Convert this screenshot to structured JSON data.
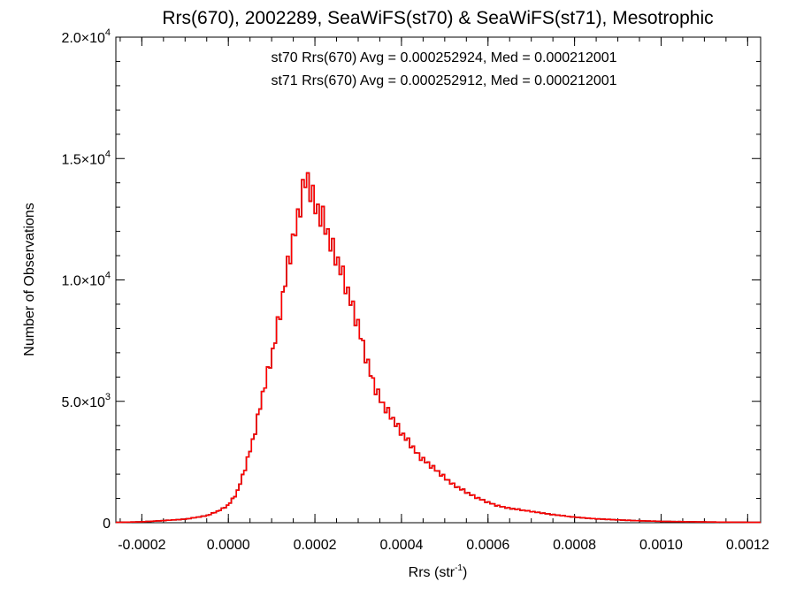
{
  "chart_data": {
    "type": "histogram-step",
    "title": "Rrs(670), 2002289, SeaWiFS(st70) & SeaWiFS(st71), Mesotrophic",
    "xlabel": "Rrs (str",
    "xlabel_sup": "-1",
    "xlabel_close": ")",
    "ylabel": "Number of Observations",
    "xlim": [
      -0.00026,
      0.00123
    ],
    "ylim": [
      0,
      20000
    ],
    "x_ticks": [
      {
        "value": -0.0002,
        "label": "-0.0002"
      },
      {
        "value": 0.0,
        "label": "0.0000"
      },
      {
        "value": 0.0002,
        "label": "0.0002"
      },
      {
        "value": 0.0004,
        "label": "0.0004"
      },
      {
        "value": 0.0006,
        "label": "0.0006"
      },
      {
        "value": 0.0008,
        "label": "0.0008"
      },
      {
        "value": 0.001,
        "label": "0.0010"
      },
      {
        "value": 0.0012,
        "label": "0.0012"
      }
    ],
    "y_ticks": [
      {
        "value": 0,
        "mant": "0",
        "exp": ""
      },
      {
        "value": 5000,
        "mant": "5.0×10",
        "exp": "3"
      },
      {
        "value": 10000,
        "mant": "1.0×10",
        "exp": "4"
      },
      {
        "value": 15000,
        "mant": "1.5×10",
        "exp": "4"
      },
      {
        "value": 20000,
        "mant": "2.0×10",
        "exp": "4"
      }
    ],
    "annotations": [
      {
        "text": "st70 Rrs(670) Avg = 0.000252924, Med = 0.000212001",
        "color": "#000000"
      },
      {
        "text": "st71 Rrs(670) Avg = 0.000252912, Med = 0.000212001",
        "color": "#ff0000"
      }
    ],
    "series": [
      {
        "name": "st70",
        "color": "#000000"
      },
      {
        "name": "st71",
        "color": "#ff0000"
      }
    ],
    "bin_width": 5.8e-06,
    "shape_points": [
      [
        -0.00026,
        0.0009
      ],
      [
        -0.0002,
        0.0025
      ],
      [
        -0.00015,
        0.006
      ],
      [
        -0.0001,
        0.01
      ],
      [
        -5e-05,
        0.02
      ],
      [
        -2e-05,
        0.035
      ],
      [
        0.0,
        0.05
      ],
      [
        2e-05,
        0.085
      ],
      [
        4e-05,
        0.16
      ],
      [
        6e-05,
        0.25
      ],
      [
        8e-05,
        0.37
      ],
      [
        0.0001,
        0.47
      ],
      [
        0.00012,
        0.6
      ],
      [
        0.00014,
        0.75
      ],
      [
        0.00016,
        0.86
      ],
      [
        0.00017,
        0.935
      ],
      [
        0.00018,
        0.98
      ],
      [
        0.00019,
        0.95
      ],
      [
        0.0002,
        0.9
      ],
      [
        0.00022,
        0.86
      ],
      [
        0.00024,
        0.78
      ],
      [
        0.00026,
        0.72
      ],
      [
        0.00028,
        0.64
      ],
      [
        0.0003,
        0.56
      ],
      [
        0.00032,
        0.46
      ],
      [
        0.00034,
        0.38
      ],
      [
        0.00036,
        0.33
      ],
      [
        0.00038,
        0.295
      ],
      [
        0.0004,
        0.255
      ],
      [
        0.00042,
        0.225
      ],
      [
        0.00044,
        0.19
      ],
      [
        0.00046,
        0.17
      ],
      [
        0.00048,
        0.15
      ],
      [
        0.0005,
        0.128
      ],
      [
        0.00052,
        0.108
      ],
      [
        0.00054,
        0.094
      ],
      [
        0.00056,
        0.08
      ],
      [
        0.00058,
        0.068
      ],
      [
        0.0006,
        0.058
      ],
      [
        0.00062,
        0.049
      ],
      [
        0.00065,
        0.041
      ],
      [
        0.0007,
        0.032
      ],
      [
        0.00075,
        0.023
      ],
      [
        0.0008,
        0.016
      ],
      [
        0.00085,
        0.011
      ],
      [
        0.0009,
        0.008
      ],
      [
        0.00095,
        0.0055
      ],
      [
        0.001,
        0.0038
      ],
      [
        0.0011,
        0.0022
      ],
      [
        0.0012,
        0.0012
      ],
      [
        0.00123,
        0.001
      ]
    ],
    "peak_count": 14500,
    "grid": false,
    "legend": "none"
  }
}
